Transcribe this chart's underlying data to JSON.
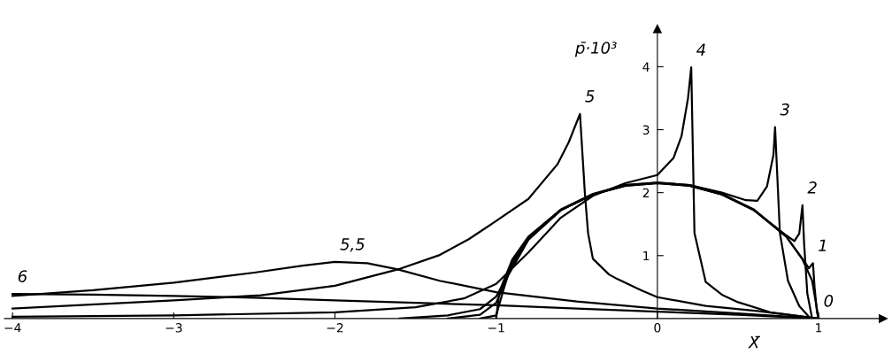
{
  "chart_data": {
    "type": "line",
    "xlabel": "X̄",
    "ylabel": "p̄·10³",
    "xlim": [
      -4.05,
      1.4
    ],
    "ylim": [
      0,
      4.6
    ],
    "xticks": [
      {
        "value": -4,
        "label": "−4"
      },
      {
        "value": -3,
        "label": "−3"
      },
      {
        "value": -2,
        "label": "−2"
      },
      {
        "value": -1,
        "label": "−1"
      },
      0,
      1
    ],
    "yticks": [
      1,
      2,
      3,
      4
    ],
    "grid": false,
    "legend": false,
    "marker": "none",
    "line_style": "solid",
    "series": [
      {
        "color": "#000000",
        "x": [
          -1,
          -0.98,
          -0.9,
          -0.8,
          -0.6,
          -0.4,
          -0.2,
          0,
          0.2,
          0.4,
          0.6,
          0.8,
          0.9,
          0.96,
          1.0
        ],
        "values": [
          0,
          0.43,
          0.94,
          1.3,
          1.73,
          1.98,
          2.12,
          2.16,
          2.12,
          1.98,
          1.73,
          1.3,
          0.94,
          0.6,
          0
        ]
      },
      {
        "color": "#000000",
        "x": [
          -1.1,
          -1.0,
          -0.95,
          -0.9,
          -0.8,
          -0.6,
          -0.4,
          -0.2,
          0,
          0.2,
          0.4,
          0.6,
          0.8,
          0.9,
          0.94,
          0.965,
          0.975,
          0.99,
          1.0
        ],
        "values": [
          0,
          0.05,
          0.5,
          0.9,
          1.28,
          1.72,
          1.97,
          2.11,
          2.15,
          2.11,
          1.97,
          1.72,
          1.3,
          0.95,
          0.8,
          0.88,
          0.5,
          0.1,
          0
        ]
      },
      {
        "color": "#000000",
        "x": [
          -1.3,
          -1.1,
          -1.0,
          -0.9,
          -0.8,
          -0.6,
          -0.4,
          -0.2,
          0,
          0.2,
          0.4,
          0.6,
          0.8,
          0.85,
          0.88,
          0.9,
          0.91,
          0.93,
          0.96
        ],
        "values": [
          0,
          0.06,
          0.25,
          0.85,
          1.27,
          1.72,
          1.97,
          2.11,
          2.15,
          2.11,
          1.97,
          1.72,
          1.32,
          1.23,
          1.35,
          1.8,
          1.2,
          0.4,
          0
        ]
      },
      {
        "color": "#000000",
        "x": [
          -1.6,
          -1.3,
          -1.1,
          -1.0,
          -0.9,
          -0.8,
          -0.6,
          -0.4,
          -0.2,
          0,
          0.2,
          0.4,
          0.55,
          0.62,
          0.68,
          0.72,
          0.73,
          0.76,
          0.81,
          0.88,
          0.95
        ],
        "values": [
          0,
          0.05,
          0.15,
          0.35,
          0.8,
          1.25,
          1.72,
          1.97,
          2.12,
          2.16,
          2.12,
          2.0,
          1.88,
          1.87,
          2.1,
          2.6,
          3.04,
          1.36,
          0.6,
          0.2,
          0
        ]
      },
      {
        "color": "#000000",
        "x": [
          -4,
          -3,
          -2,
          -1.5,
          -1.2,
          -1.0,
          -0.8,
          -0.6,
          -0.4,
          -0.2,
          0,
          0.1,
          0.15,
          0.19,
          0.21,
          0.23,
          0.3,
          0.4,
          0.5,
          0.7,
          1.0
        ],
        "values": [
          0.03,
          0.05,
          0.1,
          0.18,
          0.32,
          0.55,
          1.05,
          1.6,
          1.95,
          2.15,
          2.28,
          2.55,
          2.9,
          3.5,
          3.99,
          1.36,
          0.58,
          0.38,
          0.26,
          0.1,
          0
        ]
      },
      {
        "color": "#000000",
        "x": [
          -4,
          -3,
          -2.46,
          -2,
          -1.61,
          -1.35,
          -1.17,
          -1.0,
          -0.8,
          -0.62,
          -0.55,
          -0.48,
          -0.45,
          -0.43,
          -0.4,
          -0.3,
          -0.25,
          -0.1,
          0,
          0.3,
          0.62,
          1.0
        ],
        "values": [
          0.16,
          0.29,
          0.37,
          0.52,
          0.78,
          1.01,
          1.26,
          1.55,
          1.9,
          2.45,
          2.8,
          3.25,
          2.0,
          1.36,
          0.95,
          0.7,
          0.63,
          0.45,
          0.34,
          0.2,
          0.12,
          0
        ]
      },
      {
        "color": "#000000",
        "x": [
          -4,
          -3.5,
          -3,
          -2.5,
          -2.2,
          -2.0,
          -1.8,
          -1.61,
          -1.35,
          -1.0,
          -0.5,
          0,
          0.5,
          1.0
        ],
        "values": [
          0.36,
          0.45,
          0.57,
          0.73,
          0.84,
          0.9,
          0.88,
          0.78,
          0.6,
          0.42,
          0.27,
          0.16,
          0.08,
          0
        ]
      },
      {
        "color": "#000000",
        "x": [
          -4,
          -3.5,
          -3,
          -2.5,
          -2,
          -1.5,
          -1,
          -0.5,
          0,
          0.5,
          1.0
        ],
        "values": [
          0.39,
          0.38,
          0.36,
          0.33,
          0.29,
          0.25,
          0.21,
          0.16,
          0.11,
          0.06,
          0
        ]
      }
    ],
    "annotations": [
      {
        "text": "0",
        "x": 1.0,
        "y": 0
      },
      {
        "text": "1",
        "x": 0.965,
        "y": 0.88
      },
      {
        "text": "2",
        "x": 0.9,
        "y": 1.8
      },
      {
        "text": "3",
        "x": 0.73,
        "y": 3.04
      },
      {
        "text": "4",
        "x": 0.21,
        "y": 3.99
      },
      {
        "text": "5",
        "x": -0.48,
        "y": 3.25
      },
      {
        "text": "5,5",
        "x": -2.0,
        "y": 0.9
      },
      {
        "text": "6",
        "x": -4,
        "y": 0.39
      }
    ]
  }
}
